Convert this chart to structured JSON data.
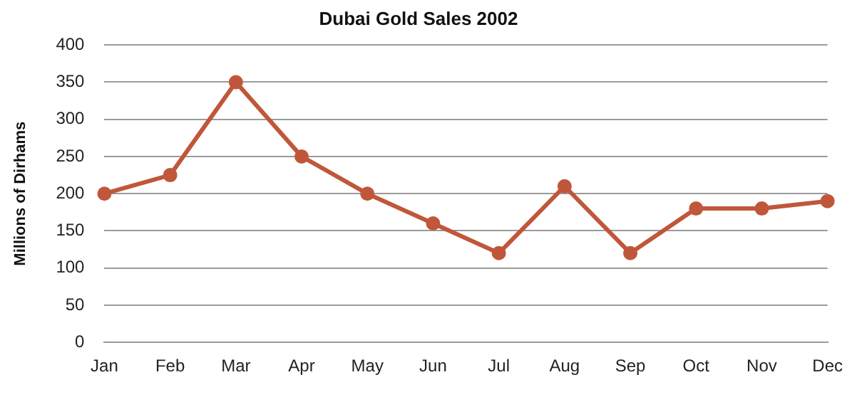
{
  "chart_data": {
    "type": "line",
    "title": "Dubai Gold Sales 2002",
    "ylabel": "Millions of Dirhams",
    "categories": [
      "Jan",
      "Feb",
      "Mar",
      "Apr",
      "May",
      "Jun",
      "Jul",
      "Aug",
      "Sep",
      "Oct",
      "Nov",
      "Dec"
    ],
    "series": [
      {
        "color": "#c0573a",
        "values": [
          200,
          225,
          350,
          250,
          200,
          160,
          120,
          210,
          120,
          180,
          180,
          190
        ]
      }
    ],
    "ylim": [
      0,
      400
    ],
    "yticks": [
      0,
      50,
      100,
      150,
      200,
      250,
      300,
      350,
      400
    ],
    "grid": "y",
    "marker": "circle",
    "line_style": "solid"
  }
}
